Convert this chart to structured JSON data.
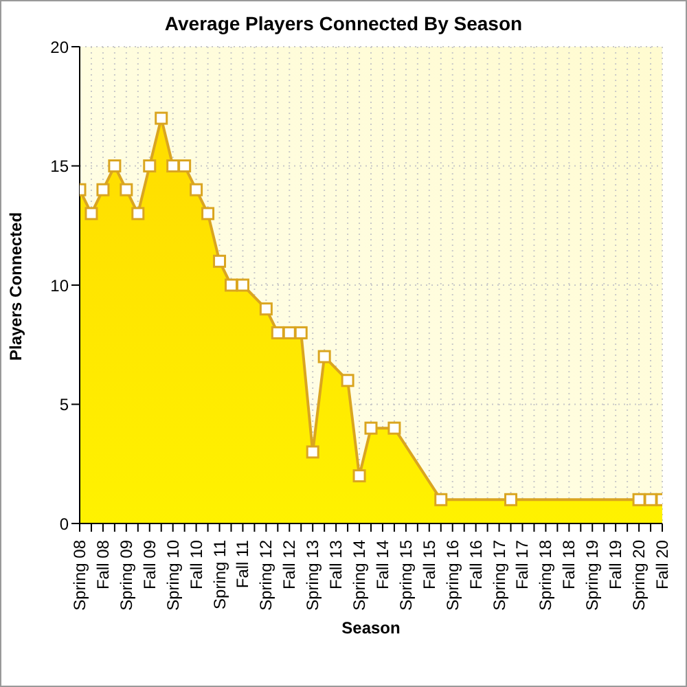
{
  "chart_data": {
    "type": "area",
    "title": "Average Players Connected By Season",
    "xlabel": "Season",
    "ylabel": "Players Connected",
    "categories": [
      "Spring 08",
      null,
      "Fall 08",
      null,
      "Spring 09",
      null,
      "Fall 09",
      null,
      "Spring 10",
      null,
      "Fall 10",
      null,
      "Spring 11",
      null,
      "Fall 11",
      null,
      "Spring 12",
      null,
      "Fall 12",
      null,
      "Spring 13",
      null,
      "Fall 13",
      null,
      "Spring 14",
      null,
      "Fall 14",
      null,
      "Spring 15",
      null,
      "Fall 15",
      null,
      "Spring 16",
      null,
      "Fall 16",
      null,
      "Spring 17",
      null,
      "Fall 17",
      null,
      "Spring 18",
      null,
      "Fall 18",
      null,
      "Spring 19",
      null,
      "Fall 19",
      null,
      "Spring 20",
      null,
      "Fall 20"
    ],
    "series": [
      {
        "color": "#daa520",
        "values": [
          14,
          13,
          14,
          15,
          14,
          13,
          15,
          17,
          15,
          15,
          14,
          13,
          11,
          10,
          10,
          null,
          9,
          8,
          8,
          8,
          3,
          7,
          null,
          6,
          2,
          4,
          null,
          4,
          null,
          null,
          null,
          1,
          null,
          null,
          null,
          null,
          null,
          1,
          null,
          null,
          null,
          null,
          null,
          null,
          null,
          null,
          null,
          null,
          1,
          1,
          1
        ]
      }
    ],
    "ylim": [
      0,
      20
    ],
    "yticks": [
      0,
      5,
      10,
      15,
      20
    ],
    "grid": true,
    "marker": "square",
    "line_style": "solid"
  }
}
